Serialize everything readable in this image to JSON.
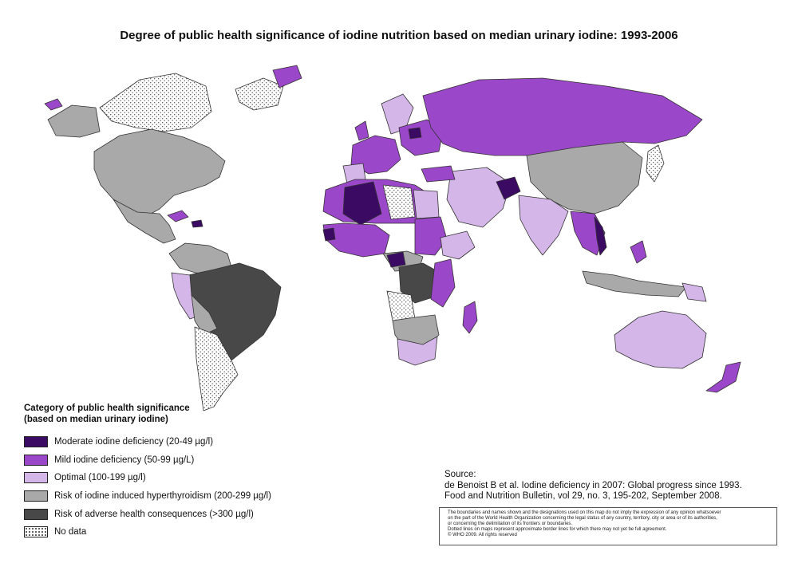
{
  "title": "Degree of public health significance of iodine nutrition based on median urinary iodine: 1993-2006",
  "legend": {
    "heading_lines": [
      "Category of public health significance",
      "(based on median urinary iodine)"
    ],
    "items": [
      {
        "label": "Moderate iodine deficiency (20-49 µg/l)",
        "color": "#3b0a63"
      },
      {
        "label": "Mild iodine deficiency (50-99 µg/L)",
        "color": "#9b47c9"
      },
      {
        "label": "Optimal (100-199 µg/l)",
        "color": "#d4b6e8"
      },
      {
        "label": "Risk of iodine induced hyperthyroidism (200-299 µg/l)",
        "color": "#a9a9a9"
      },
      {
        "label": "Risk of adverse health consequences (>300 µg/l)",
        "color": "#484848"
      },
      {
        "label": "No data",
        "color": "#ffffff"
      }
    ]
  },
  "source": {
    "lines": [
      "Source:",
      "de Benoist B et al. Iodine deficiency in 2007: Global progress since 1993.",
      "Food and Nutrition Bulletin, vol 29, no. 3, 195-202, September 2008."
    ]
  },
  "disclaimer": {
    "lines": [
      "The boundaries and names shown and the designations used on this map do not imply the expression of any opinion whatsoever",
      "on the part of the World Health Organization concerning the legal status of any country, territory, city or area or of its authorities,",
      "or concerning the delimitation of its frontiers or boundaries.",
      "Dotted lines on maps represent approximate border lines for which there may not yet be full agreement.",
      "© WHO 2009. All rights reserved"
    ]
  }
}
